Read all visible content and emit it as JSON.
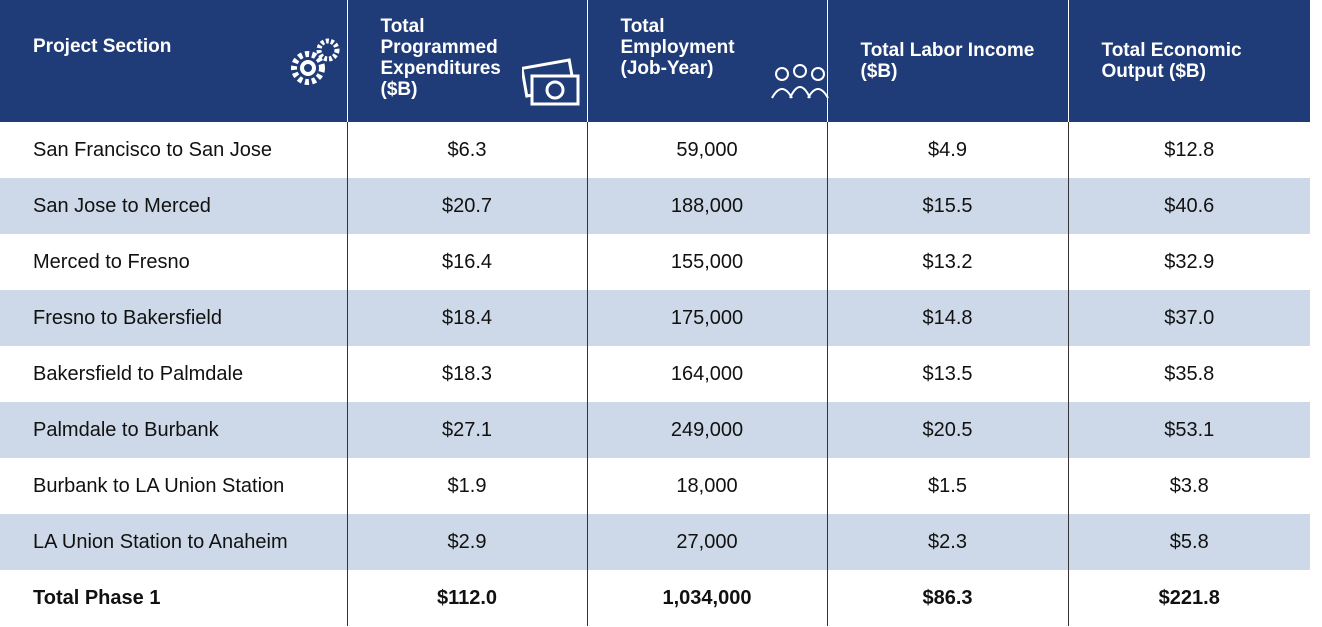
{
  "table": {
    "header": [
      "Project Section",
      "Total Programmed Expenditures ($B)",
      "Total Employment (Job-Year)",
      "Total Labor Income ($B)",
      "Total Economic Output ($B)"
    ],
    "rows": [
      [
        "San Francisco to San Jose",
        "$6.3",
        "59,000",
        "$4.9",
        "$12.8"
      ],
      [
        "San Jose to Merced",
        "$20.7",
        "188,000",
        "$15.5",
        "$40.6"
      ],
      [
        "Merced to Fresno",
        "$16.4",
        "155,000",
        "$13.2",
        "$32.9"
      ],
      [
        "Fresno to Bakersfield",
        "$18.4",
        "175,000",
        "$14.8",
        "$37.0"
      ],
      [
        "Bakersfield to Palmdale",
        "$18.3",
        "164,000",
        "$13.5",
        "$35.8"
      ],
      [
        "Palmdale to Burbank",
        "$27.1",
        "249,000",
        "$20.5",
        "$53.1"
      ],
      [
        "Burbank to LA Union Station",
        "$1.9",
        "18,000",
        "$1.5",
        "$3.8"
      ],
      [
        "LA Union Station to Anaheim",
        "$2.9",
        "27,000",
        "$2.3",
        "$5.8"
      ]
    ],
    "total": [
      "Total Phase 1",
      "$112.0",
      "1,034,000",
      "$86.3",
      "$221.8"
    ]
  }
}
